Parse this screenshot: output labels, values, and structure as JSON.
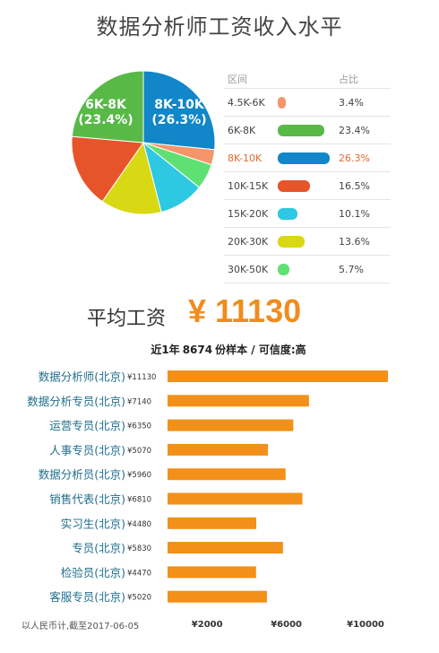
{
  "title": "数据分析师工资收入水平",
  "legend": {
    "header_range": "区间",
    "header_pct": "占比",
    "rows": [
      {
        "label": "4.5K-6K",
        "pct": "3.4%",
        "color": "#f4956a"
      },
      {
        "label": "6K-8K",
        "pct": "23.4%",
        "color": "#58b947"
      },
      {
        "label": "8K-10K",
        "pct": "26.3%",
        "color": "#1186c8",
        "highlight": true
      },
      {
        "label": "10K-15K",
        "pct": "16.5%",
        "color": "#e8542a"
      },
      {
        "label": "15K-20K",
        "pct": "10.1%",
        "color": "#2ec8e2"
      },
      {
        "label": "20K-30K",
        "pct": "13.6%",
        "color": "#d8d814"
      },
      {
        "label": "30K-50K",
        "pct": "5.7%",
        "color": "#5fe072"
      }
    ]
  },
  "pie_labels": {
    "left_range": "6K-8K",
    "left_pct": "(23.4%)",
    "right_range": "8K-10K",
    "right_pct": "(26.3%)"
  },
  "average": {
    "label": "平均工资",
    "value": "¥ 11130"
  },
  "sample": {
    "prefix": "近1年",
    "count": "8674",
    "suffix": "份样本 / 可信度:",
    "confidence": "高"
  },
  "footnote": "以人民币计,截至2017-06-05",
  "colors": {
    "bar": "#f39019",
    "label": "#1f6e8c",
    "accent": "#f08c1e"
  },
  "chart_data": [
    {
      "type": "pie",
      "categories": [
        "4.5K-6K",
        "6K-8K",
        "8K-10K",
        "10K-15K",
        "15K-20K",
        "20K-30K",
        "30K-50K"
      ],
      "values": [
        3.4,
        23.4,
        26.3,
        16.5,
        10.1,
        13.6,
        5.7
      ],
      "title": "数据分析师工资收入水平"
    },
    {
      "type": "bar",
      "orientation": "horizontal",
      "categories": [
        "数据分析师(北京)",
        "数据分析专员(北京)",
        "运营专员(北京)",
        "人事专员(北京)",
        "数据分析员(北京)",
        "销售代表(北京)",
        "实习生(北京)",
        "专员(北京)",
        "检验员(北京)",
        "客服专员(北京)"
      ],
      "values": [
        11130,
        7140,
        6350,
        5070,
        5960,
        6810,
        4480,
        5830,
        4470,
        5020
      ],
      "value_labels": [
        "¥11130",
        "¥7140",
        "¥6350",
        "¥5070",
        "¥5960",
        "¥6810",
        "¥4480",
        "¥5830",
        "¥4470",
        "¥5020"
      ],
      "x_ticks": [
        2000,
        6000,
        10000
      ],
      "x_tick_labels": [
        "¥2000",
        "¥6000",
        "¥10000"
      ],
      "xlim": [
        0,
        11300
      ]
    }
  ]
}
